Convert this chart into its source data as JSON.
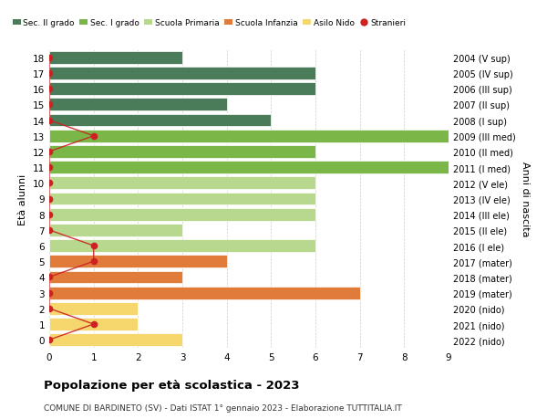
{
  "ages": [
    18,
    17,
    16,
    15,
    14,
    13,
    12,
    11,
    10,
    9,
    8,
    7,
    6,
    5,
    4,
    3,
    2,
    1,
    0
  ],
  "years": [
    "2004 (V sup)",
    "2005 (IV sup)",
    "2006 (III sup)",
    "2007 (II sup)",
    "2008 (I sup)",
    "2009 (III med)",
    "2010 (II med)",
    "2011 (I med)",
    "2012 (V ele)",
    "2013 (IV ele)",
    "2014 (III ele)",
    "2015 (II ele)",
    "2016 (I ele)",
    "2017 (mater)",
    "2018 (mater)",
    "2019 (mater)",
    "2020 (nido)",
    "2021 (nido)",
    "2022 (nido)"
  ],
  "bar_values": [
    3,
    6,
    6,
    4,
    5,
    9,
    6,
    9,
    6,
    6,
    6,
    3,
    6,
    4,
    3,
    7,
    2,
    2,
    3
  ],
  "bar_colors": [
    "#4a7c59",
    "#4a7c59",
    "#4a7c59",
    "#4a7c59",
    "#4a7c59",
    "#7ab648",
    "#7ab648",
    "#7ab648",
    "#b8d98d",
    "#b8d98d",
    "#b8d98d",
    "#b8d98d",
    "#b8d98d",
    "#e07b39",
    "#e07b39",
    "#e07b39",
    "#f5d76e",
    "#f5d76e",
    "#f5d76e"
  ],
  "stranieri_values": [
    0,
    0,
    0,
    0,
    0,
    1,
    0,
    0,
    0,
    0,
    0,
    0,
    1,
    1,
    0,
    0,
    0,
    1,
    0
  ],
  "stranieri_color": "#cc2222",
  "legend_labels": [
    "Sec. II grado",
    "Sec. I grado",
    "Scuola Primaria",
    "Scuola Infanzia",
    "Asilo Nido",
    "Stranieri"
  ],
  "legend_colors": [
    "#4a7c59",
    "#7ab648",
    "#b8d98d",
    "#e07b39",
    "#f5d76e",
    "#cc2222"
  ],
  "ylabel_left": "Età alunni",
  "ylabel_right": "Anni di nascita",
  "title": "Popolazione per età scolastica - 2023",
  "subtitle": "COMUNE DI BARDINETO (SV) - Dati ISTAT 1° gennaio 2023 - Elaborazione TUTTITALIA.IT",
  "xlim": [
    0,
    9
  ],
  "bg_color": "#ffffff",
  "grid_color": "#cccccc"
}
